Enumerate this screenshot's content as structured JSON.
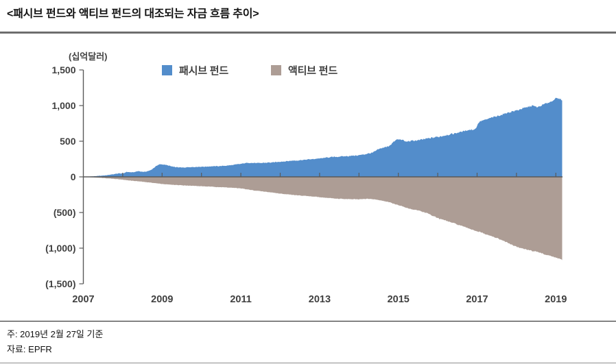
{
  "page": {
    "title": "<패시브 펀드와 액티브 펀드의 대조되는 자금 흐름 추이>",
    "note": "주: 2019년 2월 27일 기준",
    "source": "자료: EPFR"
  },
  "chart_data": {
    "type": "area",
    "title": "패시브 펀드와 액티브 펀드의 대조되는 자금 흐름 추이",
    "unit_label": "(십억달러)",
    "legend_position": "top",
    "grid": false,
    "x_range": [
      2007,
      2019.17
    ],
    "y_range": [
      -1500,
      1500
    ],
    "x_tick_years": [
      2007,
      2009,
      2011,
      2013,
      2015,
      2017,
      2019
    ],
    "x_tick_labels": [
      "2007",
      "2009",
      "2011",
      "2013",
      "2015",
      "2017",
      "2019"
    ],
    "x_minor_tick_years": [
      2008,
      2009,
      2010,
      2011,
      2012,
      2013,
      2014,
      2015,
      2016,
      2017,
      2018,
      2019
    ],
    "y_ticks": [
      1500,
      1000,
      500,
      0,
      -500,
      -1000,
      -1500
    ],
    "y_tick_labels": [
      "1,500",
      "1,000",
      "500",
      "0",
      "(500)",
      "(1,000)",
      "(1,500)"
    ],
    "axis_color": "#595959",
    "label_color": "#404040",
    "x": [
      2007.0,
      2007.25,
      2007.5,
      2007.75,
      2007.9,
      2008.0,
      2008.1,
      2008.25,
      2008.4,
      2008.55,
      2008.7,
      2008.85,
      2008.95,
      2009.1,
      2009.3,
      2009.5,
      2009.75,
      2010.0,
      2010.25,
      2010.5,
      2010.75,
      2011.0,
      2011.2,
      2011.4,
      2011.6,
      2011.8,
      2012.0,
      2012.25,
      2012.5,
      2012.75,
      2013.0,
      2013.25,
      2013.5,
      2013.75,
      2014.0,
      2014.2,
      2014.35,
      2014.5,
      2014.75,
      2014.95,
      2015.05,
      2015.2,
      2015.35,
      2015.5,
      2015.75,
      2016.0,
      2016.25,
      2016.5,
      2016.75,
      2016.95,
      2017.05,
      2017.25,
      2017.5,
      2017.75,
      2018.0,
      2018.2,
      2018.4,
      2018.55,
      2018.7,
      2018.9,
      2019.0,
      2019.1,
      2019.16
    ],
    "series": [
      {
        "name": "패시브 펀드",
        "color": "#538DCB",
        "values": [
          0,
          8,
          18,
          35,
          50,
          45,
          70,
          62,
          80,
          68,
          90,
          150,
          178,
          168,
          138,
          130,
          138,
          142,
          147,
          152,
          163,
          183,
          198,
          192,
          198,
          203,
          212,
          225,
          232,
          245,
          258,
          275,
          283,
          293,
          303,
          322,
          340,
          390,
          428,
          520,
          528,
          495,
          505,
          512,
          538,
          562,
          588,
          618,
          655,
          668,
          772,
          808,
          848,
          895,
          932,
          965,
          1000,
          975,
          1020,
          1060,
          1100,
          1095,
          1080
        ]
      },
      {
        "name": "액티브 펀드",
        "color": "#AD9D95",
        "values": [
          0,
          -8,
          -16,
          -26,
          -33,
          -40,
          -46,
          -55,
          -62,
          -72,
          -80,
          -90,
          -96,
          -105,
          -112,
          -118,
          -125,
          -132,
          -138,
          -145,
          -152,
          -162,
          -180,
          -195,
          -207,
          -220,
          -235,
          -250,
          -260,
          -272,
          -285,
          -298,
          -308,
          -313,
          -316,
          -308,
          -312,
          -325,
          -352,
          -390,
          -405,
          -435,
          -455,
          -468,
          -515,
          -578,
          -622,
          -668,
          -715,
          -755,
          -770,
          -812,
          -858,
          -918,
          -982,
          -1012,
          -1040,
          -1052,
          -1085,
          -1115,
          -1132,
          -1150,
          -1168
        ]
      }
    ]
  }
}
